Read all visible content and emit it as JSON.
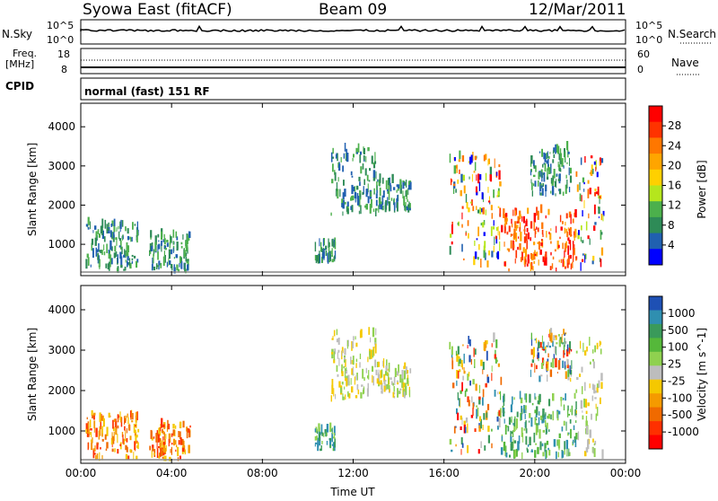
{
  "header": {
    "station": "Syowa East (fitACF)",
    "beam": "Beam 09",
    "date": "12/Mar/2011"
  },
  "status_panel": {
    "nsky_label": "N.Sky",
    "nsky_ticks": [
      "10^5",
      "10^0"
    ],
    "nsearch_label": "N.Search",
    "nsearch_ticks": [
      "10^5",
      "10^0"
    ],
    "freq_label": "Freq.",
    "freq_unit": "[MHz]",
    "freq_ticks": [
      "18",
      "8"
    ],
    "nave_label": "Nave",
    "nave_ticks": [
      "60",
      "0"
    ],
    "cpid_label": "CPID",
    "cpid_text": "normal (fast) 151 RF"
  },
  "chart_data": [
    {
      "type": "heatmap",
      "name": "power",
      "ylabel": "Slant Range [km]",
      "yticks": [
        "1000",
        "2000",
        "3000",
        "4000"
      ],
      "ylim": [
        200,
        4600
      ],
      "xlim": [
        0,
        24
      ],
      "colorbar_label": "Power [dB]",
      "colorbar_ticks": [
        "28",
        "24",
        "20",
        "16",
        "12",
        "8",
        "4"
      ],
      "colorbar_colors": [
        "#ff0000",
        "#ff3300",
        "#ff7700",
        "#ffa500",
        "#ffd000",
        "#b5e61d",
        "#4cb04c",
        "#2e8b57",
        "#2060b0",
        "#0000ff"
      ],
      "echo_regions": [
        {
          "t0": 0.2,
          "t1": 2.5,
          "r0": 250,
          "r1": 1500,
          "level": "low"
        },
        {
          "t0": 3.0,
          "t1": 4.8,
          "r0": 250,
          "r1": 1200,
          "level": "low"
        },
        {
          "t0": 10.3,
          "t1": 11.2,
          "r0": 500,
          "r1": 1000,
          "level": "low"
        },
        {
          "t0": 11.0,
          "t1": 13.0,
          "r0": 1700,
          "r1": 3400,
          "level": "low"
        },
        {
          "t0": 13.0,
          "t1": 14.5,
          "r0": 1800,
          "r1": 2600,
          "level": "low"
        },
        {
          "t0": 16.2,
          "t1": 18.5,
          "r0": 400,
          "r1": 3200,
          "level": "mixed"
        },
        {
          "t0": 18.5,
          "t1": 21.8,
          "r0": 300,
          "r1": 1800,
          "level": "high"
        },
        {
          "t0": 19.8,
          "t1": 21.6,
          "r0": 2200,
          "r1": 3400,
          "level": "low"
        },
        {
          "t0": 21.8,
          "t1": 23.0,
          "r0": 300,
          "r1": 3200,
          "level": "mixed"
        }
      ]
    },
    {
      "type": "heatmap",
      "name": "velocity",
      "ylabel": "Slant Range [km]",
      "yticks": [
        "1000",
        "2000",
        "3000",
        "4000"
      ],
      "ylim": [
        200,
        4600
      ],
      "xlim": [
        0,
        24
      ],
      "xlabel": "Time UT",
      "xticks": [
        "00:00",
        "04:00",
        "08:00",
        "12:00",
        "16:00",
        "20:00",
        "00:00"
      ],
      "colorbar_label": "Velocity [m s^-1]",
      "colorbar_ticks": [
        "1000",
        "500",
        "100",
        "25",
        "-25",
        "-100",
        "-500",
        "-1000"
      ],
      "colorbar_colors": [
        "#1e50b4",
        "#2f8fb0",
        "#3a9a5a",
        "#55b83a",
        "#8fd14f",
        "#bdbdbd",
        "#f5c800",
        "#f59a00",
        "#f06a00",
        "#ff3000",
        "#ff0000"
      ],
      "echo_regions": [
        {
          "t0": 0.2,
          "t1": 2.5,
          "r0": 250,
          "r1": 1400,
          "level": "neg"
        },
        {
          "t0": 3.0,
          "t1": 4.8,
          "r0": 250,
          "r1": 1100,
          "level": "neg"
        },
        {
          "t0": 10.3,
          "t1": 11.2,
          "r0": 500,
          "r1": 1000,
          "level": "pos"
        },
        {
          "t0": 11.0,
          "t1": 13.0,
          "r0": 1700,
          "r1": 3400,
          "level": "zero"
        },
        {
          "t0": 13.0,
          "t1": 14.5,
          "r0": 1800,
          "r1": 2600,
          "level": "zero"
        },
        {
          "t0": 16.2,
          "t1": 18.5,
          "r0": 400,
          "r1": 3200,
          "level": "mixed"
        },
        {
          "t0": 18.5,
          "t1": 21.8,
          "r0": 300,
          "r1": 1800,
          "level": "pos"
        },
        {
          "t0": 19.8,
          "t1": 21.6,
          "r0": 2200,
          "r1": 3400,
          "level": "mixed"
        },
        {
          "t0": 21.8,
          "t1": 23.0,
          "r0": 300,
          "r1": 3200,
          "level": "zero"
        }
      ]
    }
  ]
}
